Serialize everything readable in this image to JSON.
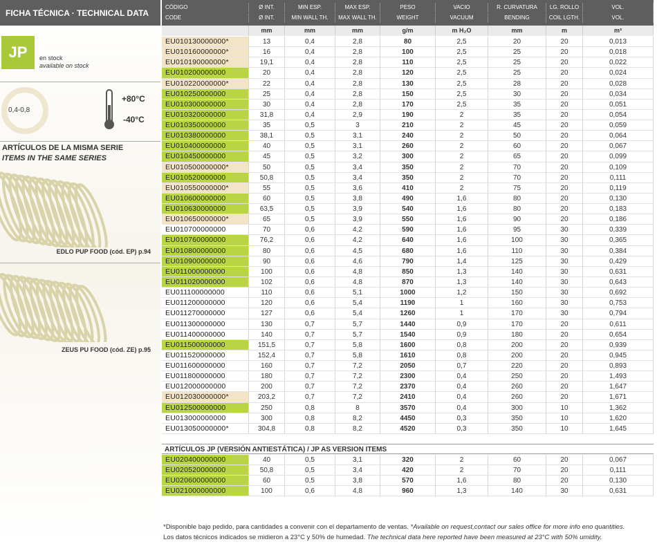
{
  "sidebar": {
    "title": "FICHA TÉCNICA · TECHNICAL DATA",
    "badge": "JP",
    "stock_es": "en stock",
    "stock_en": "available on stock",
    "thickness": "0,4-0,8",
    "temp_max": "+80°C",
    "temp_min": "-40°C",
    "series_es": "ARTÍCULOS DE LA MISMA SERIE",
    "series_en": "ITEMS IN THE SAME SERIES",
    "related": [
      "EDLO PUP FOOD (cód. EP) p.94",
      "ZEUS PU FOOD (cód. ZE) p.95"
    ]
  },
  "table": {
    "columns": [
      {
        "es": "CÓDIGO",
        "en": "CODE"
      },
      {
        "es": "Ø INT.",
        "en": "Ø INT."
      },
      {
        "es": "MIN ESP.",
        "en": "MIN WALL TH."
      },
      {
        "es": "MAX ESP.",
        "en": "MAX WALL TH."
      },
      {
        "es": "PESO",
        "en": "WEIGHT"
      },
      {
        "es": "VACIO",
        "en": "VACUUM"
      },
      {
        "es": "R. CURVATURA",
        "en": "BENDING"
      },
      {
        "es": "LG. ROLLO",
        "en": "COIL LGTH."
      },
      {
        "es": "VOL.",
        "en": "VOL."
      }
    ],
    "units": [
      "mm",
      "mm",
      "mm",
      "g/m",
      "m H₂O",
      "mm",
      "m",
      "m³"
    ],
    "rows": [
      {
        "highlight": "beige",
        "cells": [
          "EU010130000000*",
          "13",
          "0,4",
          "2,8",
          "80",
          "2,5",
          "20",
          "20",
          "0,013"
        ]
      },
      {
        "highlight": "beige",
        "cells": [
          "EU010160000000*",
          "16",
          "0,4",
          "2,8",
          "100",
          "2,5",
          "25",
          "20",
          "0,018"
        ]
      },
      {
        "highlight": "beige",
        "cells": [
          "EU010190000000*",
          "19,1",
          "0,4",
          "2,8",
          "110",
          "2,5",
          "25",
          "20",
          "0,022"
        ]
      },
      {
        "highlight": "green",
        "cells": [
          "EU010200000000",
          "20",
          "0,4",
          "2,8",
          "120",
          "2,5",
          "25",
          "20",
          "0,024"
        ]
      },
      {
        "highlight": "beige",
        "cells": [
          "EU010220000000*",
          "22",
          "0,4",
          "2,8",
          "130",
          "2,5",
          "28",
          "20",
          "0,028"
        ]
      },
      {
        "highlight": "green",
        "cells": [
          "EU010250000000",
          "25",
          "0,4",
          "2,8",
          "150",
          "2,5",
          "30",
          "20",
          "0,034"
        ]
      },
      {
        "highlight": "green",
        "cells": [
          "EU010300000000",
          "30",
          "0,4",
          "2,8",
          "170",
          "2,5",
          "35",
          "20",
          "0,051"
        ]
      },
      {
        "highlight": "green",
        "cells": [
          "EU010320000000",
          "31,8",
          "0,4",
          "2,9",
          "190",
          "2",
          "35",
          "20",
          "0,054"
        ]
      },
      {
        "highlight": "green",
        "cells": [
          "EU010350000000",
          "35",
          "0,5",
          "3",
          "210",
          "2",
          "45",
          "20",
          "0,059"
        ]
      },
      {
        "highlight": "green",
        "cells": [
          "EU010380000000",
          "38,1",
          "0,5",
          "3,1",
          "240",
          "2",
          "50",
          "20",
          "0,064"
        ]
      },
      {
        "highlight": "green",
        "cells": [
          "EU010400000000",
          "40",
          "0,5",
          "3,1",
          "260",
          "2",
          "60",
          "20",
          "0,067"
        ]
      },
      {
        "highlight": "green",
        "cells": [
          "EU010450000000",
          "45",
          "0,5",
          "3,2",
          "300",
          "2",
          "65",
          "20",
          "0,099"
        ]
      },
      {
        "highlight": "beige",
        "cells": [
          "EU010500000000*",
          "50",
          "0,5",
          "3,4",
          "350",
          "2",
          "70",
          "20",
          "0,109"
        ]
      },
      {
        "highlight": "green",
        "cells": [
          "EU010520000000",
          "50,8",
          "0,5",
          "3,4",
          "350",
          "2",
          "70",
          "20",
          "0,111"
        ]
      },
      {
        "highlight": "beige",
        "cells": [
          "EU010550000000*",
          "55",
          "0,5",
          "3,6",
          "410",
          "2",
          "75",
          "20",
          "0,119"
        ]
      },
      {
        "highlight": "green",
        "cells": [
          "EU010600000000",
          "60",
          "0,5",
          "3,8",
          "490",
          "1,6",
          "80",
          "20",
          "0,130"
        ]
      },
      {
        "highlight": "green",
        "cells": [
          "EU010630000000",
          "63,5",
          "0,5",
          "3,9",
          "540",
          "1,6",
          "80",
          "20",
          "0,183"
        ]
      },
      {
        "highlight": "beige",
        "cells": [
          "EU010650000000*",
          "65",
          "0,5",
          "3,9",
          "550",
          "1,6",
          "90",
          "20",
          "0,186"
        ]
      },
      {
        "cells": [
          "EU010700000000",
          "70",
          "0,6",
          "4,2",
          "590",
          "1,6",
          "95",
          "30",
          "0,339"
        ]
      },
      {
        "highlight": "green",
        "cells": [
          "EU010760000000",
          "76,2",
          "0,6",
          "4,2",
          "640",
          "1,6",
          "100",
          "30",
          "0,365"
        ]
      },
      {
        "highlight": "green",
        "cells": [
          "EU010800000000",
          "80",
          "0,6",
          "4,5",
          "680",
          "1,6",
          "110",
          "30",
          "0,384"
        ]
      },
      {
        "highlight": "green",
        "cells": [
          "EU010900000000",
          "90",
          "0,6",
          "4,6",
          "790",
          "1,4",
          "125",
          "30",
          "0,429"
        ]
      },
      {
        "highlight": "green",
        "cells": [
          "EU011000000000",
          "100",
          "0,6",
          "4,8",
          "850",
          "1,3",
          "140",
          "30",
          "0,631"
        ]
      },
      {
        "highlight": "green",
        "cells": [
          "EU011020000000",
          "102",
          "0,6",
          "4,8",
          "870",
          "1,3",
          "140",
          "30",
          "0,643"
        ]
      },
      {
        "cells": [
          "EU011100000000",
          "110",
          "0,6",
          "5,1",
          "1000",
          "1,2",
          "150",
          "30",
          "0,692"
        ]
      },
      {
        "cells": [
          "EU011200000000",
          "120",
          "0,6",
          "5,4",
          "1190",
          "1",
          "160",
          "30",
          "0,753"
        ]
      },
      {
        "cells": [
          "EU011270000000",
          "127",
          "0,6",
          "5,4",
          "1260",
          "1",
          "170",
          "30",
          "0,794"
        ]
      },
      {
        "cells": [
          "EU011300000000",
          "130",
          "0,7",
          "5,7",
          "1440",
          "0,9",
          "170",
          "20",
          "0,611"
        ]
      },
      {
        "cells": [
          "EU011400000000",
          "140",
          "0,7",
          "5,7",
          "1540",
          "0,9",
          "180",
          "20",
          "0,654"
        ]
      },
      {
        "highlight": "green",
        "cells": [
          "EU011500000000",
          "151,5",
          "0,7",
          "5,8",
          "1600",
          "0,8",
          "200",
          "20",
          "0,939"
        ]
      },
      {
        "cells": [
          "EU011520000000",
          "152,4",
          "0,7",
          "5,8",
          "1610",
          "0,8",
          "200",
          "20",
          "0,945"
        ]
      },
      {
        "cells": [
          "EU011600000000",
          "160",
          "0,7",
          "7,2",
          "2050",
          "0,7",
          "220",
          "20",
          "0,893"
        ]
      },
      {
        "cells": [
          "EU011800000000",
          "180",
          "0,7",
          "7,2",
          "2300",
          "0,4",
          "250",
          "20",
          "1,493"
        ]
      },
      {
        "cells": [
          "EU012000000000",
          "200",
          "0,7",
          "7,2",
          "2370",
          "0,4",
          "260",
          "20",
          "1,647"
        ]
      },
      {
        "highlight": "beige",
        "cells": [
          "EU012030000000*",
          "203,2",
          "0,7",
          "7,2",
          "2410",
          "0,4",
          "260",
          "20",
          "1,671"
        ]
      },
      {
        "highlight": "green",
        "cells": [
          "EU012500000000",
          "250",
          "0,8",
          "8",
          "3570",
          "0,4",
          "300",
          "10",
          "1,362"
        ]
      },
      {
        "cells": [
          "EU013000000000",
          "300",
          "0,8",
          "8,2",
          "4450",
          "0,3",
          "350",
          "10",
          "1,620"
        ]
      },
      {
        "cells": [
          "EU013050000000*",
          "304,8",
          "0,8",
          "8,2",
          "4520",
          "0,3",
          "350",
          "10",
          "1,645"
        ]
      }
    ]
  },
  "table2": {
    "title": "ARTÍCULOS JP (VERSIÓN ANTIESTÁTICA) / JP AS VERSION ITEMS",
    "rows": [
      {
        "highlight": "green",
        "cells": [
          "EU020400000000",
          "40",
          "0,5",
          "3,1",
          "320",
          "2",
          "60",
          "20",
          "0,067"
        ]
      },
      {
        "highlight": "green",
        "cells": [
          "EU020520000000",
          "50,8",
          "0,5",
          "3,4",
          "420",
          "2",
          "70",
          "20",
          "0,111"
        ]
      },
      {
        "highlight": "green",
        "cells": [
          "EU020600000000",
          "60",
          "0,5",
          "3,8",
          "570",
          "1,6",
          "80",
          "20",
          "0,130"
        ]
      },
      {
        "highlight": "green",
        "cells": [
          "EU021000000000",
          "100",
          "0,6",
          "4,8",
          "960",
          "1,3",
          "140",
          "30",
          "0,631"
        ]
      }
    ]
  },
  "footnote": [
    [
      {
        "text": "*Disponible bajo pedido, para cantidades a convenir con el departamento de ventas. "
      },
      {
        "text": "*Available on request,contact our sales office for more info eno quantities.",
        "italic": true
      }
    ],
    [
      {
        "text": "Los datos técnicos indicados se midieron a 23°C y 50% de humedad. "
      },
      {
        "text": "The technical data here reported have been measured at 23°C with 50% umidity.",
        "italic": true
      }
    ]
  ]
}
